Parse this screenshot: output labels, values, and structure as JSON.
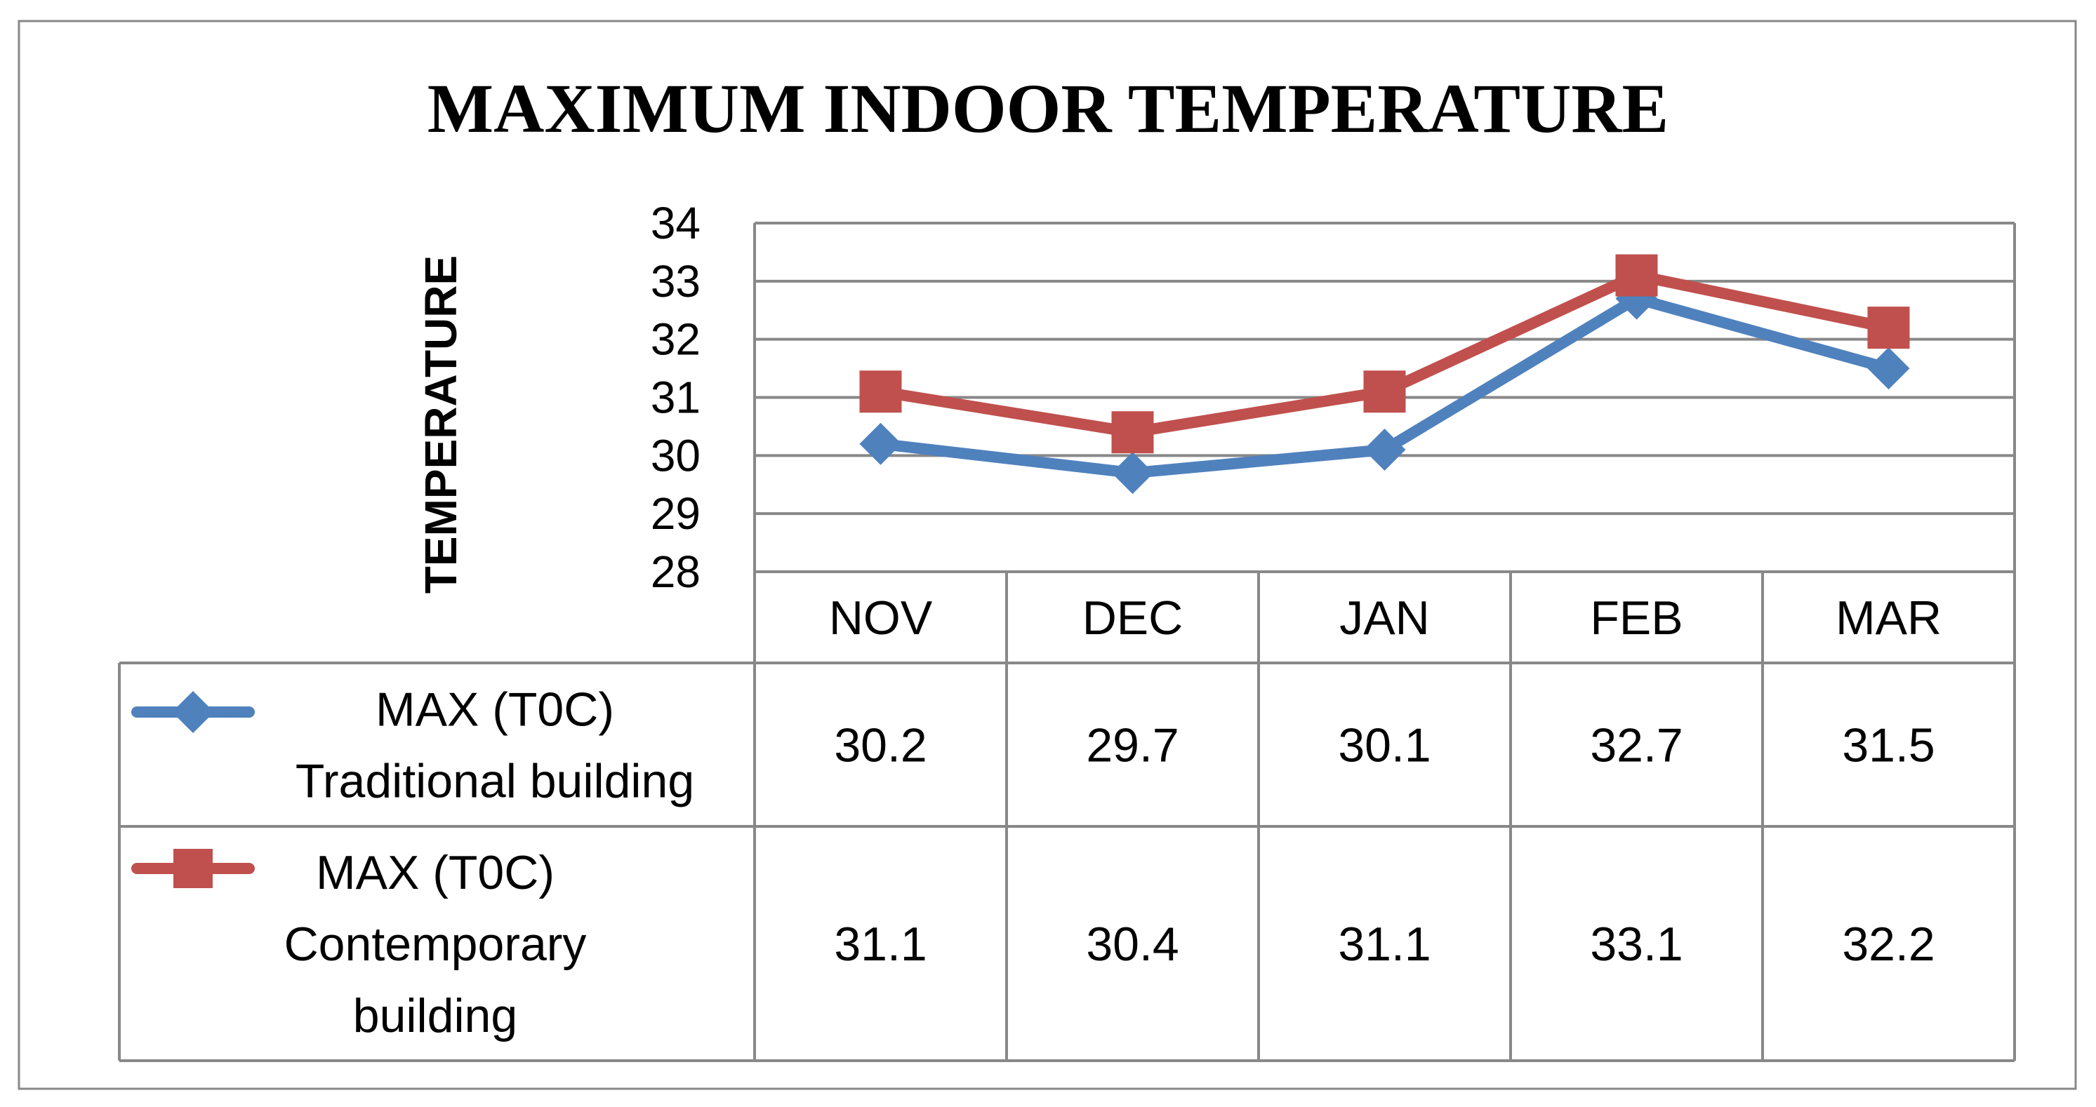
{
  "chart_data": {
    "type": "line",
    "title": "MAXIMUM INDOOR TEMPERATURE",
    "xlabel": "",
    "ylabel": "TEMPERATURE",
    "ylim": [
      28,
      34
    ],
    "yticks": [
      "28",
      "29",
      "30",
      "31",
      "32",
      "33",
      "34"
    ],
    "grid": true,
    "legend_placement": "data-table-left",
    "categories": [
      "NOV",
      "DEC",
      "JAN",
      "FEB",
      "MAR"
    ],
    "series": [
      {
        "name": "MAX (T0C) Traditional building",
        "name_lines": [
          "MAX (T0C)",
          "Traditional building"
        ],
        "marker": "diamond",
        "color": "#4f81bd",
        "values": [
          30.2,
          29.7,
          30.1,
          32.7,
          31.5
        ],
        "labels": [
          "30.2",
          "29.7",
          "30.1",
          "32.7",
          "31.5"
        ]
      },
      {
        "name": "MAX (T0C) Contemporary building",
        "name_lines": [
          "MAX (T0C)",
          "Contemporary",
          "building"
        ],
        "marker": "square",
        "color": "#c0504d",
        "values": [
          31.1,
          30.4,
          31.1,
          33.1,
          32.2
        ],
        "labels": [
          "31.1",
          "30.4",
          "31.1",
          "33.1",
          "32.2"
        ]
      }
    ]
  }
}
